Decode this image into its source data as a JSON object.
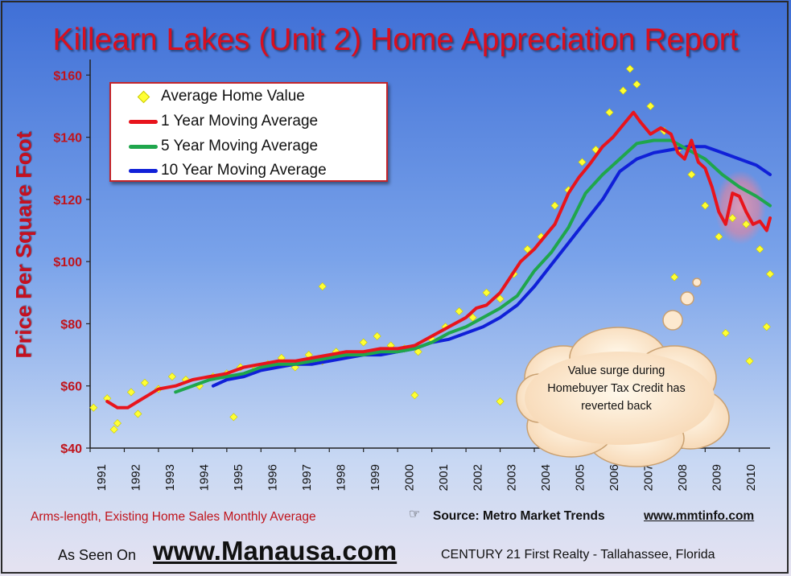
{
  "page": {
    "title": "Killearn Lakes (Unit 2) Home Appreciation Report",
    "source_note": "Arms-length, Existing Home Sales Monthly Average",
    "source": "Source: Metro Market Trends",
    "source_url": "www.mmtinfo.com",
    "as_seen_on": "As Seen On",
    "website": "www.Manausa.com",
    "office": "CENTURY 21 First Realty - Tallahassee, Florida",
    "callout": "Value surge during Homebuyer Tax Credit has reverted back",
    "hand_icon": "pointing-hand-icon"
  },
  "chart_data": {
    "type": "line",
    "title": "Killearn Lakes (Unit 2) Home Appreciation Report",
    "xlabel": "",
    "ylabel": "Price Per Square Foot",
    "xlim": [
      1991,
      2010.9
    ],
    "ylim": [
      40,
      165
    ],
    "x_ticks": [
      "1991",
      "1992",
      "1993",
      "1994",
      "1995",
      "1996",
      "1997",
      "1998",
      "1999",
      "2000",
      "2001",
      "2002",
      "2003",
      "2004",
      "2005",
      "2006",
      "2007",
      "2008",
      "2009",
      "2010"
    ],
    "y_ticks": [
      "$40",
      "$60",
      "$80",
      "$100",
      "$120",
      "$140",
      "$160"
    ],
    "grid": false,
    "legend_position": "top-left",
    "colors": {
      "scatter": "#ffff33",
      "one_year": "#e8141c",
      "five_year": "#1fa64c",
      "ten_year": "#1020d8"
    },
    "series": [
      {
        "name": "Average Home Value",
        "type": "scatter",
        "x": [
          1991.1,
          1991.5,
          1991.8,
          1992.2,
          1992.6,
          1993.0,
          1993.4,
          1993.8,
          1994.2,
          1994.6,
          1995.0,
          1995.4,
          1995.8,
          1996.2,
          1996.6,
          1997.0,
          1997.4,
          1997.8,
          1998.2,
          1998.6,
          1999.0,
          1999.4,
          1999.8,
          2000.2,
          2000.6,
          2001.0,
          2001.4,
          2001.8,
          2002.2,
          2002.6,
          2003.0,
          2003.4,
          2003.8,
          2004.2,
          2004.6,
          2005.0,
          2005.4,
          2005.8,
          2006.2,
          2006.6,
          2007.0,
          2007.4,
          2007.8,
          2008.2,
          2008.6,
          2009.0,
          2009.4,
          2009.8,
          2010.2,
          2010.6,
          2010.9,
          1991.7,
          1992.4,
          1995.2,
          1997.8,
          2000.5,
          2003.0,
          2006.8,
          2008.1,
          2009.6,
          2010.3,
          2010.8
        ],
        "y": [
          53,
          56,
          48,
          58,
          61,
          59,
          63,
          62,
          60,
          63,
          64,
          66,
          65,
          67,
          69,
          66,
          70,
          68,
          71,
          70,
          74,
          76,
          73,
          72,
          71,
          75,
          79,
          84,
          82,
          90,
          88,
          96,
          104,
          108,
          118,
          123,
          132,
          136,
          148,
          155,
          157,
          150,
          142,
          136,
          128,
          118,
          108,
          114,
          112,
          104,
          96,
          46,
          51,
          50,
          92,
          57,
          55,
          162,
          95,
          77,
          68,
          79
        ]
      },
      {
        "name": "1 Year Moving Average",
        "type": "line",
        "x": [
          1991.5,
          1991.8,
          1992.1,
          1992.4,
          1992.7,
          1993.0,
          1993.5,
          1994.0,
          1994.5,
          1995.0,
          1995.5,
          1996.0,
          1996.5,
          1997.0,
          1997.5,
          1998.0,
          1998.5,
          1999.0,
          1999.5,
          2000.0,
          2000.5,
          2001.0,
          2001.5,
          2002.0,
          2002.3,
          2002.6,
          2003.0,
          2003.3,
          2003.6,
          2004.0,
          2004.3,
          2004.6,
          2005.0,
          2005.3,
          2005.6,
          2006.0,
          2006.3,
          2006.6,
          2006.9,
          2007.1,
          2007.4,
          2007.7,
          2008.0,
          2008.2,
          2008.4,
          2008.6,
          2008.8,
          2009.0,
          2009.2,
          2009.4,
          2009.6,
          2009.8,
          2010.0,
          2010.2,
          2010.4,
          2010.6,
          2010.8,
          2010.9
        ],
        "y": [
          55,
          53,
          53,
          55,
          57,
          59,
          60,
          62,
          63,
          64,
          66,
          67,
          68,
          68,
          69,
          70,
          71,
          71,
          72,
          72,
          73,
          76,
          79,
          82,
          85,
          86,
          90,
          95,
          100,
          104,
          108,
          112,
          122,
          127,
          131,
          137,
          140,
          144,
          148,
          145,
          141,
          143,
          141,
          135,
          133,
          139,
          132,
          130,
          124,
          116,
          112,
          122,
          121,
          116,
          112,
          113,
          110,
          114
        ]
      },
      {
        "name": "5 Year Moving Average",
        "type": "line",
        "x": [
          1993.5,
          1994.0,
          1994.5,
          1995.0,
          1995.5,
          1996.0,
          1996.5,
          1997.0,
          1997.5,
          1998.0,
          1998.5,
          1999.0,
          1999.5,
          2000.0,
          2000.5,
          2001.0,
          2001.5,
          2002.0,
          2002.5,
          2003.0,
          2003.5,
          2004.0,
          2004.5,
          2005.0,
          2005.5,
          2006.0,
          2006.5,
          2007.0,
          2007.5,
          2008.0,
          2008.5,
          2009.0,
          2009.5,
          2010.0,
          2010.5,
          2010.9
        ],
        "y": [
          58,
          60,
          62,
          63,
          64,
          66,
          67,
          67,
          68,
          69,
          70,
          70,
          71,
          71,
          72,
          74,
          77,
          79,
          82,
          85,
          89,
          97,
          103,
          111,
          122,
          128,
          133,
          138,
          139,
          139,
          136,
          133,
          128,
          124,
          121,
          118
        ]
      },
      {
        "name": "10 Year Moving Average",
        "type": "line",
        "x": [
          1994.6,
          1995.0,
          1995.5,
          1996.0,
          1996.5,
          1997.0,
          1997.5,
          1998.0,
          1998.5,
          1999.0,
          1999.5,
          2000.0,
          2000.5,
          2001.0,
          2001.5,
          2002.0,
          2002.5,
          2003.0,
          2003.5,
          2004.0,
          2004.5,
          2005.0,
          2005.5,
          2006.0,
          2006.5,
          2007.0,
          2007.5,
          2008.0,
          2008.5,
          2009.0,
          2009.5,
          2010.0,
          2010.5,
          2010.9
        ],
        "y": [
          60,
          62,
          63,
          65,
          66,
          67,
          67,
          68,
          69,
          70,
          70,
          71,
          72,
          74,
          75,
          77,
          79,
          82,
          86,
          92,
          99,
          106,
          113,
          120,
          129,
          133,
          135,
          136,
          137,
          137,
          135,
          133,
          131,
          128
        ]
      }
    ],
    "annotations": [
      "Value surge during Homebuyer Tax Credit has reverted back"
    ]
  }
}
